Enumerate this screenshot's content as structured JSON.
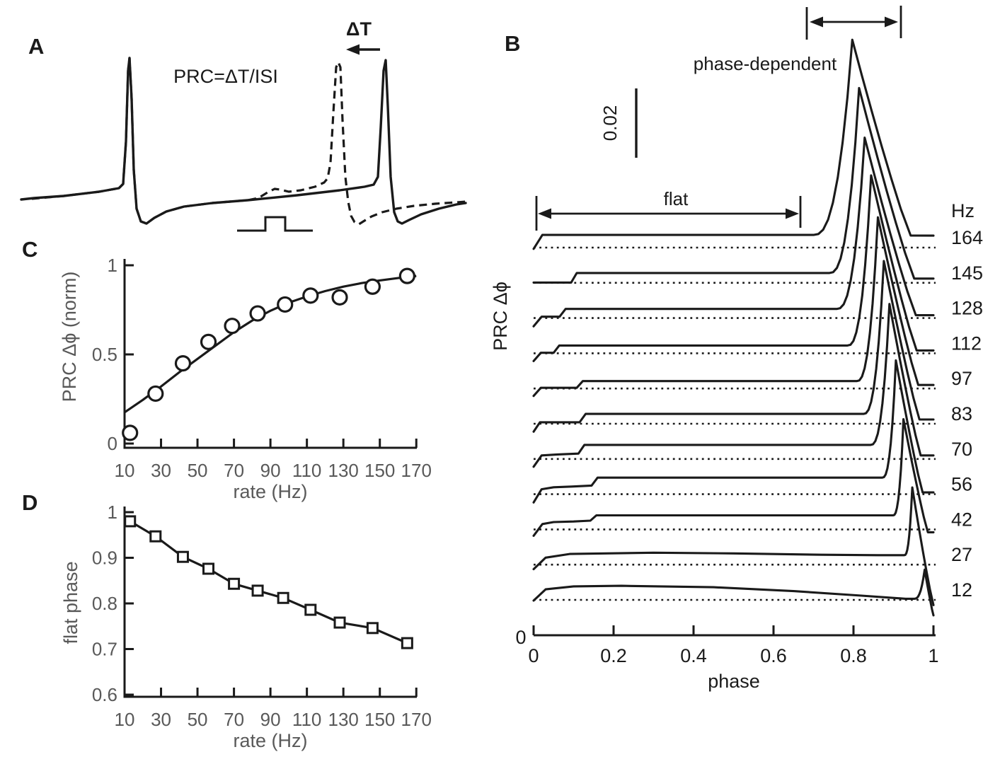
{
  "figure": {
    "bg": "#ffffff",
    "ink": "#1a1a1a",
    "muted": "#595959"
  },
  "panels": {
    "a": {
      "label": "A",
      "formula": "PRC=ΔT/ISI",
      "delta_t": "ΔT"
    },
    "b": {
      "label": "B",
      "ylabel": "PRC Δϕ",
      "xlabel": "phase",
      "hz_header": "Hz",
      "scalebar_label": "0.02",
      "flat_label": "flat",
      "phase_dependent_label": "phase-dependent",
      "origin_label": "0"
    },
    "c": {
      "label": "C",
      "ylabel": "PRC Δϕ (norm)",
      "xlabel": "rate (Hz)"
    },
    "d": {
      "label": "D",
      "ylabel": "flat phase",
      "xlabel": "rate (Hz)"
    }
  },
  "chart_data": [
    {
      "panel": "A",
      "type": "line",
      "title": "Spike traces: control (solid) and perturbed (dashed), PRC = ΔT/ISI",
      "annotations": [
        "PRC=ΔT/ISI",
        "ΔT"
      ],
      "control_trace": [
        [
          30,
          282
        ],
        [
          48,
          280
        ],
        [
          90,
          277
        ],
        [
          140,
          271
        ],
        [
          168,
          266
        ],
        [
          174,
          260
        ],
        [
          178,
          200
        ],
        [
          181,
          100
        ],
        [
          183,
          82
        ],
        [
          186,
          140
        ],
        [
          189,
          240
        ],
        [
          193,
          295
        ],
        [
          199,
          313
        ],
        [
          207,
          316
        ],
        [
          218,
          308
        ],
        [
          235,
          299
        ],
        [
          260,
          292
        ],
        [
          300,
          287
        ],
        [
          350,
          283
        ],
        [
          420,
          276
        ],
        [
          480,
          269
        ],
        [
          515,
          264
        ],
        [
          528,
          261
        ],
        [
          534,
          250
        ],
        [
          538,
          180
        ],
        [
          542,
          100
        ],
        [
          545,
          85
        ],
        [
          548,
          150
        ],
        [
          552,
          250
        ],
        [
          557,
          300
        ],
        [
          562,
          313
        ],
        [
          568,
          316
        ],
        [
          578,
          311
        ],
        [
          595,
          303
        ],
        [
          620,
          295
        ],
        [
          645,
          289
        ],
        [
          658,
          287
        ]
      ],
      "perturbed_trace": [
        [
          45,
          281
        ],
        [
          90,
          277
        ],
        [
          140,
          271
        ],
        [
          168,
          266
        ],
        [
          174,
          260
        ],
        [
          178,
          200
        ],
        [
          181,
          100
        ],
        [
          183,
          82
        ],
        [
          186,
          140
        ],
        [
          189,
          240
        ],
        [
          193,
          295
        ],
        [
          199,
          313
        ],
        [
          207,
          316
        ],
        [
          218,
          308
        ],
        [
          235,
          299
        ],
        [
          260,
          292
        ],
        [
          300,
          287
        ],
        [
          350,
          283
        ],
        [
          365,
          280
        ],
        [
          378,
          272
        ],
        [
          388,
          267
        ],
        [
          396,
          268
        ],
        [
          408,
          271
        ],
        [
          425,
          269
        ],
        [
          445,
          264
        ],
        [
          458,
          258
        ],
        [
          463,
          252
        ],
        [
          467,
          230
        ],
        [
          471,
          160
        ],
        [
          475,
          95
        ],
        [
          478,
          88
        ],
        [
          481,
          95
        ],
        [
          484,
          170
        ],
        [
          488,
          250
        ],
        [
          492,
          285
        ],
        [
          496,
          305
        ],
        [
          501,
          314
        ],
        [
          507,
          317
        ],
        [
          515,
          312
        ],
        [
          525,
          306
        ],
        [
          540,
          300
        ],
        [
          560,
          295
        ],
        [
          585,
          291
        ],
        [
          615,
          288
        ],
        [
          645,
          286
        ],
        [
          658,
          285
        ]
      ],
      "stimulus_pulse": [
        [
          335,
          326
        ],
        [
          375,
          326
        ],
        [
          375,
          307
        ],
        [
          403,
          307
        ],
        [
          403,
          326
        ],
        [
          442,
          326
        ]
      ],
      "shift_arrow": {
        "from": [
          537,
          70
        ],
        "to": [
          489,
          70
        ]
      }
    },
    {
      "panel": "B",
      "type": "line",
      "xlabel": "phase",
      "ylabel": "PRC Δϕ",
      "x_range": [
        0,
        1
      ],
      "xticks": [
        "0",
        "0.2",
        "0.4",
        "0.6",
        "0.8",
        "1"
      ],
      "origin_tick": "0",
      "hz_header": "Hz",
      "scalebar_value": 0.02,
      "row_offset": 0.01,
      "region_labels": {
        "flat": "flat",
        "phase_dependent": "phase-dependent"
      },
      "curves": [
        {
          "rate": 164,
          "flat": 0.0036,
          "foot": 0.7,
          "peak_phase": 0.797,
          "peak": 0.059,
          "desc_end": 0.943,
          "tail": 0.0034,
          "steps": [
            [
              0,
              -0.1
            ],
            [
              0.022,
              1
            ]
          ]
        },
        {
          "rate": 145,
          "flat": 0.0028,
          "foot": 0.74,
          "peak_phase": 0.814,
          "peak": 0.0553,
          "desc_end": 0.952,
          "tail": 0.0012,
          "steps": [
            [
              0,
              0.03
            ],
            [
              0.094,
              0.03
            ],
            [
              0.108,
              1
            ]
          ]
        },
        {
          "rate": 128,
          "flat": 0.0026,
          "foot": 0.758,
          "peak_phase": 0.828,
          "peak": 0.0512,
          "desc_end": 0.956,
          "tail": 0.0008,
          "steps": [
            [
              0,
              -0.9
            ],
            [
              0.02,
              0.15
            ],
            [
              0.065,
              0.15
            ],
            [
              0.08,
              1
            ]
          ]
        },
        {
          "rate": 112,
          "flat": 0.0022,
          "foot": 0.785,
          "peak_phase": 0.844,
          "peak": 0.0505,
          "desc_end": 0.958,
          "tail": 0.0008,
          "steps": [
            [
              0,
              -1.0
            ],
            [
              0.018,
              0.06
            ],
            [
              0.05,
              0.06
            ],
            [
              0.064,
              1
            ]
          ]
        },
        {
          "rate": 97,
          "flat": 0.0021,
          "foot": 0.808,
          "peak_phase": 0.861,
          "peak": 0.0486,
          "desc_end": 0.962,
          "tail": 0.001,
          "steps": [
            [
              0,
              -1.0
            ],
            [
              0.018,
              0.1
            ],
            [
              0.108,
              0.1
            ],
            [
              0.123,
              1
            ]
          ]
        },
        {
          "rate": 83,
          "flat": 0.0028,
          "foot": 0.825,
          "peak_phase": 0.876,
          "peak": 0.0462,
          "desc_end": 0.965,
          "tail": 0.0012,
          "steps": [
            [
              0,
              -0.8
            ],
            [
              0.016,
              0.15
            ],
            [
              0.115,
              0.15
            ],
            [
              0.13,
              1
            ]
          ]
        },
        {
          "rate": 70,
          "flat": 0.004,
          "foot": 0.843,
          "peak_phase": 0.89,
          "peak": 0.044,
          "desc_end": 0.968,
          "tail": 0.001,
          "steps": [
            [
              0,
              -0.55
            ],
            [
              0.02,
              0.25
            ],
            [
              0.06,
              0.32
            ],
            [
              0.112,
              0.38
            ],
            [
              0.127,
              1
            ]
          ]
        },
        {
          "rate": 56,
          "flat": 0.0047,
          "foot": 0.872,
          "peak_phase": 0.906,
          "peak": 0.038,
          "desc_end": 0.973,
          "tail": 0.0005,
          "steps": [
            [
              0,
              -0.5
            ],
            [
              0.02,
              0.3
            ],
            [
              0.05,
              0.42
            ],
            [
              0.095,
              0.46
            ],
            [
              0.145,
              0.52
            ],
            [
              0.16,
              1
            ]
          ]
        },
        {
          "rate": 42,
          "flat": 0.004,
          "foot": 0.899,
          "peak_phase": 0.925,
          "peak": 0.0313,
          "desc_end": 0.986,
          "tail": -0.0008,
          "steps": [
            [
              0,
              -0.45
            ],
            [
              0.022,
              0.38
            ],
            [
              0.05,
              0.52
            ],
            [
              0.1,
              0.56
            ],
            [
              0.142,
              0.62
            ],
            [
              0.157,
              1
            ]
          ]
        },
        {
          "rate": 27,
          "flat": 0.0032,
          "foot": 0.927,
          "peak_phase": 0.947,
          "peak": 0.0219,
          "desc_end": 1.0,
          "tail": -0.0115,
          "steps": [
            [
              0,
              -0.4
            ],
            [
              0.03,
              0.62
            ],
            [
              0.09,
              0.95
            ],
            [
              0.3,
              1.06
            ],
            [
              0.5,
              1.0
            ],
            [
              0.72,
              0.88
            ],
            [
              0.86,
              0.84
            ]
          ]
        },
        {
          "rate": 12,
          "flat": 0.004,
          "foot": 0.952,
          "peak_phase": 0.978,
          "peak": 0.0086,
          "desc_end": 1.0,
          "tail": -0.0044,
          "steps": [
            [
              0,
              -0.05
            ],
            [
              0.03,
              0.75
            ],
            [
              0.1,
              0.96
            ],
            [
              0.22,
              1.0
            ],
            [
              0.45,
              0.9
            ],
            [
              0.65,
              0.62
            ],
            [
              0.82,
              0.3
            ],
            [
              0.93,
              0.08
            ]
          ]
        }
      ]
    },
    {
      "panel": "C",
      "type": "scatter",
      "xlabel": "rate (Hz)",
      "ylabel": "PRC Δϕ (norm)",
      "xlim": [
        10,
        170
      ],
      "ylim": [
        0,
        1
      ],
      "xticks": [
        "10",
        "30",
        "50",
        "70",
        "90",
        "110",
        "130",
        "150",
        "170"
      ],
      "yticks": [
        "0",
        "0.5",
        "1"
      ],
      "points": [
        [
          13,
          0.06
        ],
        [
          27,
          0.28
        ],
        [
          42,
          0.45
        ],
        [
          56,
          0.57
        ],
        [
          69,
          0.66
        ],
        [
          83,
          0.73
        ],
        [
          98,
          0.78
        ],
        [
          112,
          0.83
        ],
        [
          128,
          0.82
        ],
        [
          146,
          0.88
        ],
        [
          165,
          0.94
        ]
      ],
      "fit_curve": [
        [
          10,
          0.175
        ],
        [
          20,
          0.245
        ],
        [
          30,
          0.32
        ],
        [
          40,
          0.4
        ],
        [
          50,
          0.475
        ],
        [
          60,
          0.55
        ],
        [
          70,
          0.625
        ],
        [
          80,
          0.69
        ],
        [
          90,
          0.745
        ],
        [
          100,
          0.79
        ],
        [
          110,
          0.825
        ],
        [
          120,
          0.855
        ],
        [
          130,
          0.88
        ],
        [
          140,
          0.9
        ],
        [
          150,
          0.915
        ],
        [
          160,
          0.928
        ],
        [
          170,
          0.94
        ]
      ]
    },
    {
      "panel": "D",
      "type": "line",
      "xlabel": "rate (Hz)",
      "ylabel": "flat phase",
      "xlim": [
        10,
        170
      ],
      "ylim": [
        0.6,
        1
      ],
      "xticks": [
        "10",
        "30",
        "50",
        "70",
        "90",
        "110",
        "130",
        "150",
        "170"
      ],
      "yticks": [
        "0.6",
        "0.7",
        "0.8",
        "0.9",
        "1"
      ],
      "points": [
        [
          13,
          0.98
        ],
        [
          27,
          0.947
        ],
        [
          42,
          0.902
        ],
        [
          56,
          0.876
        ],
        [
          70,
          0.843
        ],
        [
          83,
          0.828
        ],
        [
          97,
          0.812
        ],
        [
          112,
          0.786
        ],
        [
          128,
          0.758
        ],
        [
          146,
          0.746
        ],
        [
          165,
          0.713
        ]
      ]
    }
  ]
}
